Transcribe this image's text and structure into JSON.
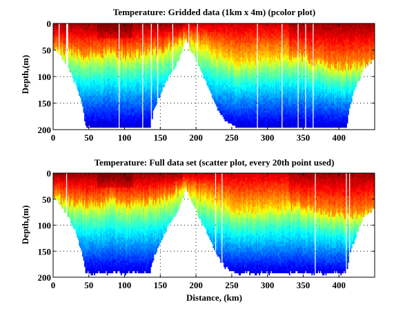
{
  "chart_data": [
    {
      "type": "heatmap",
      "title": "Temperature: Gridded data (1km x 4m) (pcolor plot)",
      "xlabel": "",
      "ylabel": "Depth,(m)",
      "xlim": [
        0,
        450
      ],
      "ylim": [
        0,
        200
      ],
      "y_reversed": true,
      "grid": true,
      "xticks": [
        0,
        50,
        100,
        150,
        200,
        250,
        300,
        350,
        400
      ],
      "yticks": [
        0,
        50,
        100,
        150,
        200
      ],
      "colormap": "jet",
      "bottom_depth_profile": {
        "distance_km": [
          0,
          10,
          20,
          30,
          40,
          45,
          50,
          135,
          140,
          150,
          160,
          170,
          180,
          185,
          190,
          200,
          210,
          220,
          230,
          240,
          255,
          410,
          415,
          425,
          435,
          445,
          450
        ],
        "depth_m": [
          45,
          60,
          80,
          110,
          150,
          190,
          195,
          195,
          160,
          130,
          100,
          80,
          50,
          25,
          45,
          70,
          100,
          130,
          160,
          180,
          195,
          195,
          150,
          110,
          80,
          70,
          65
        ]
      },
      "thermocline_profile": {
        "distance_km": [
          0,
          30,
          60,
          80,
          100,
          120,
          150,
          180,
          200,
          230,
          260,
          300,
          340,
          380,
          410,
          450
        ],
        "depth_m": [
          45,
          55,
          60,
          50,
          60,
          55,
          50,
          30,
          40,
          55,
          70,
          65,
          60,
          75,
          80,
          70
        ]
      }
    },
    {
      "type": "scatter",
      "title": "Temperature: Full data set (scatter plot, every 20th point used)",
      "xlabel": "Distance, (km)",
      "ylabel": "Depth,(m)",
      "xlim": [
        0,
        450
      ],
      "ylim": [
        0,
        200
      ],
      "y_reversed": true,
      "grid": true,
      "xticks": [
        0,
        50,
        100,
        150,
        200,
        250,
        300,
        350,
        400
      ],
      "yticks": [
        0,
        50,
        100,
        150,
        200
      ],
      "colormap": "jet",
      "bottom_depth_profile": {
        "distance_km": [
          0,
          10,
          20,
          30,
          40,
          45,
          50,
          135,
          140,
          150,
          160,
          170,
          180,
          185,
          190,
          200,
          210,
          220,
          230,
          240,
          255,
          410,
          415,
          425,
          435,
          445,
          450
        ],
        "depth_m": [
          45,
          60,
          80,
          110,
          150,
          190,
          190,
          190,
          160,
          130,
          100,
          80,
          50,
          25,
          45,
          70,
          100,
          130,
          160,
          180,
          190,
          190,
          150,
          110,
          80,
          70,
          65
        ]
      },
      "thermocline_profile": {
        "distance_km": [
          0,
          30,
          60,
          80,
          100,
          120,
          150,
          180,
          200,
          230,
          260,
          300,
          340,
          380,
          410,
          450
        ],
        "depth_m": [
          45,
          55,
          60,
          50,
          60,
          55,
          50,
          30,
          40,
          55,
          70,
          65,
          60,
          75,
          80,
          70
        ]
      }
    }
  ]
}
